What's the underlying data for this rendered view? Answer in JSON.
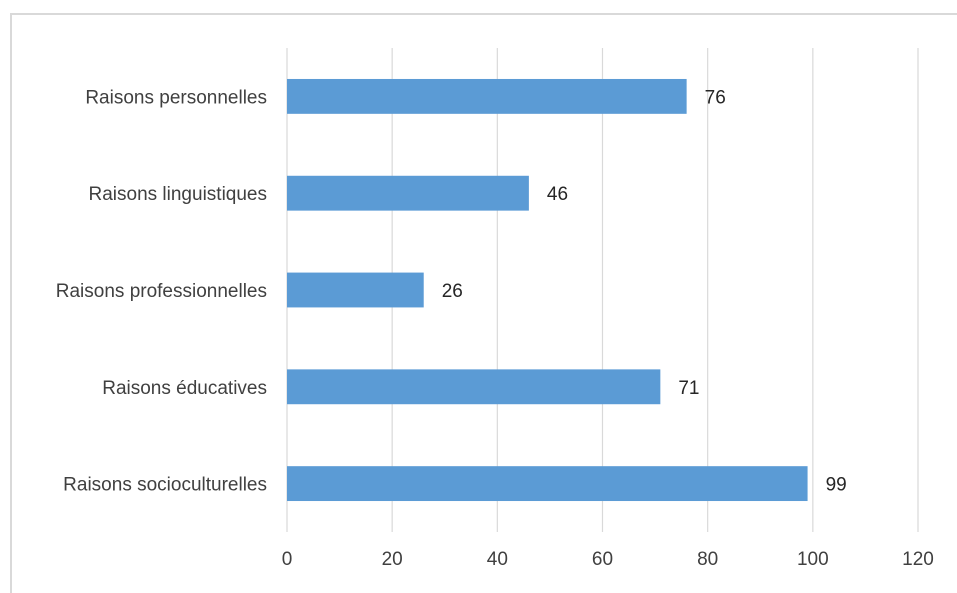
{
  "chart_data": {
    "type": "bar",
    "orientation": "horizontal",
    "categories": [
      "Raisons personnelles",
      "Raisons linguistiques",
      "Raisons professionnelles",
      "Raisons éducatives",
      "Raisons socioculturelles"
    ],
    "values": [
      76,
      46,
      26,
      71,
      99
    ],
    "xlim": [
      0,
      120
    ],
    "xticks": [
      0,
      20,
      40,
      60,
      80,
      100,
      120
    ],
    "grid": true,
    "legend": "none",
    "colors": {
      "bar": "#5b9bd5",
      "grid": "#d9d9d9"
    }
  }
}
